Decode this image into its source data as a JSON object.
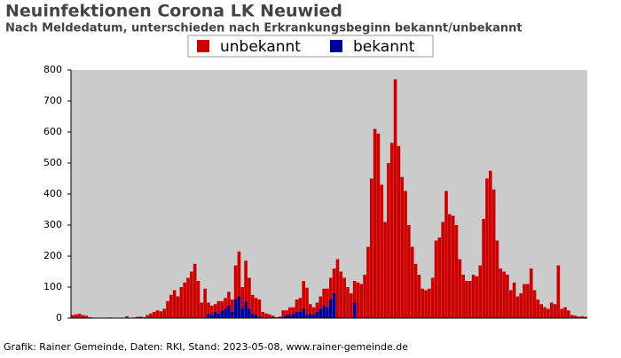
{
  "chart_data": {
    "type": "bar",
    "stacked": true,
    "title": "Neuinfektionen Corona LK Neuwied",
    "subtitle": "Nach Meldedatum, unterschieden nach Erkrankungsbeginn bekannt/unbekannt",
    "footer": "Grafik: Rainer Gemeinde, Daten: RKI, Stand: 2023-05-08, www.rainer-gemeinde.de",
    "categories": [
      null,
      null,
      null,
      null,
      null,
      null,
      null,
      null,
      null,
      null,
      null,
      null,
      null,
      null,
      null,
      null,
      null,
      null,
      null,
      null,
      null,
      null,
      null,
      null,
      null,
      null,
      null,
      null,
      null,
      null,
      null,
      null,
      null,
      null,
      null,
      null,
      null,
      null,
      null,
      null,
      null,
      null,
      null,
      null,
      null,
      null,
      null,
      null,
      null,
      null,
      null,
      null,
      null,
      null,
      null,
      null,
      null,
      null,
      null,
      null,
      null,
      null,
      null,
      null,
      null,
      null,
      null,
      null,
      null,
      null,
      null,
      null,
      null,
      null,
      null,
      null,
      null,
      null,
      null,
      null,
      null,
      null,
      null,
      null,
      null,
      null,
      null,
      null,
      null,
      null,
      null,
      null,
      null,
      null,
      null,
      null,
      null,
      null,
      null,
      null,
      null,
      null,
      null,
      null,
      null,
      null,
      null,
      null,
      null,
      null,
      null,
      null,
      null,
      null,
      null,
      null,
      null,
      null,
      null,
      null,
      null,
      null,
      null,
      null,
      null,
      null,
      null,
      null,
      null,
      null,
      null,
      null,
      null,
      null,
      null,
      null,
      null,
      null,
      null,
      null,
      null,
      null,
      null,
      null,
      null,
      null,
      null,
      null,
      null,
      null,
      null,
      null
    ],
    "series": [
      {
        "name": "bekannt",
        "color": "#000099",
        "values": [
          0,
          0,
          0,
          0,
          0,
          0,
          0,
          0,
          0,
          0,
          0,
          0,
          0,
          0,
          0,
          0,
          0,
          0,
          0,
          0,
          0,
          0,
          0,
          0,
          0,
          0,
          0,
          0,
          0,
          0,
          0,
          0,
          0,
          0,
          0,
          0,
          0,
          0,
          0,
          0,
          15,
          10,
          20,
          15,
          25,
          30,
          40,
          20,
          60,
          70,
          30,
          55,
          30,
          15,
          10,
          5,
          0,
          0,
          0,
          0,
          0,
          0,
          5,
          10,
          10,
          15,
          20,
          20,
          30,
          10,
          15,
          10,
          20,
          30,
          40,
          35,
          60,
          80,
          0,
          0,
          0,
          0,
          0,
          50,
          0,
          0,
          0,
          0,
          0,
          0,
          0,
          0,
          0,
          0,
          0,
          0,
          0,
          0,
          0,
          0,
          0,
          0,
          0,
          0,
          0,
          0,
          0,
          0,
          0,
          0,
          0,
          0,
          0,
          0,
          0,
          0,
          0,
          0,
          0,
          0,
          0,
          0,
          0,
          0,
          0,
          0,
          0,
          0,
          0,
          0,
          0,
          0,
          0,
          0,
          0,
          0,
          0,
          0,
          0,
          0,
          0,
          0,
          0,
          0,
          0,
          0,
          0,
          0,
          0,
          0,
          0,
          0
        ]
      },
      {
        "name": "unbekannt",
        "color": "#cc0000",
        "values": [
          10,
          12,
          14,
          10,
          8,
          3,
          1,
          0,
          0,
          1,
          0,
          2,
          0,
          0,
          0,
          0,
          6,
          0,
          2,
          4,
          5,
          3,
          10,
          15,
          20,
          25,
          22,
          30,
          55,
          75,
          90,
          70,
          100,
          115,
          130,
          150,
          175,
          120,
          50,
          95,
          35,
          30,
          25,
          40,
          30,
          35,
          45,
          40,
          110,
          145,
          70,
          130,
          100,
          60,
          55,
          55,
          20,
          15,
          12,
          8,
          3,
          5,
          20,
          15,
          25,
          20,
          40,
          45,
          90,
          88,
          30,
          25,
          30,
          40,
          55,
          60,
          70,
          80,
          190,
          150,
          130,
          100,
          80,
          70,
          115,
          110,
          140,
          230,
          450,
          610,
          595,
          430,
          310,
          500,
          565,
          770,
          555,
          455,
          410,
          300,
          230,
          175,
          140,
          95,
          90,
          95,
          130,
          250,
          260,
          310,
          410,
          335,
          330,
          300,
          190,
          140,
          120,
          120,
          140,
          135,
          170,
          320,
          450,
          475,
          415,
          250,
          160,
          150,
          140,
          90,
          115,
          70,
          80,
          110,
          110,
          160,
          90,
          60,
          45,
          35,
          30,
          50,
          45,
          170,
          30,
          35,
          25,
          10,
          8,
          5,
          6,
          4
        ]
      }
    ],
    "ylim": [
      0,
      800
    ],
    "yticks": [
      0,
      100,
      200,
      300,
      400,
      500,
      600,
      700,
      800
    ],
    "grid": false,
    "legend": "top"
  }
}
